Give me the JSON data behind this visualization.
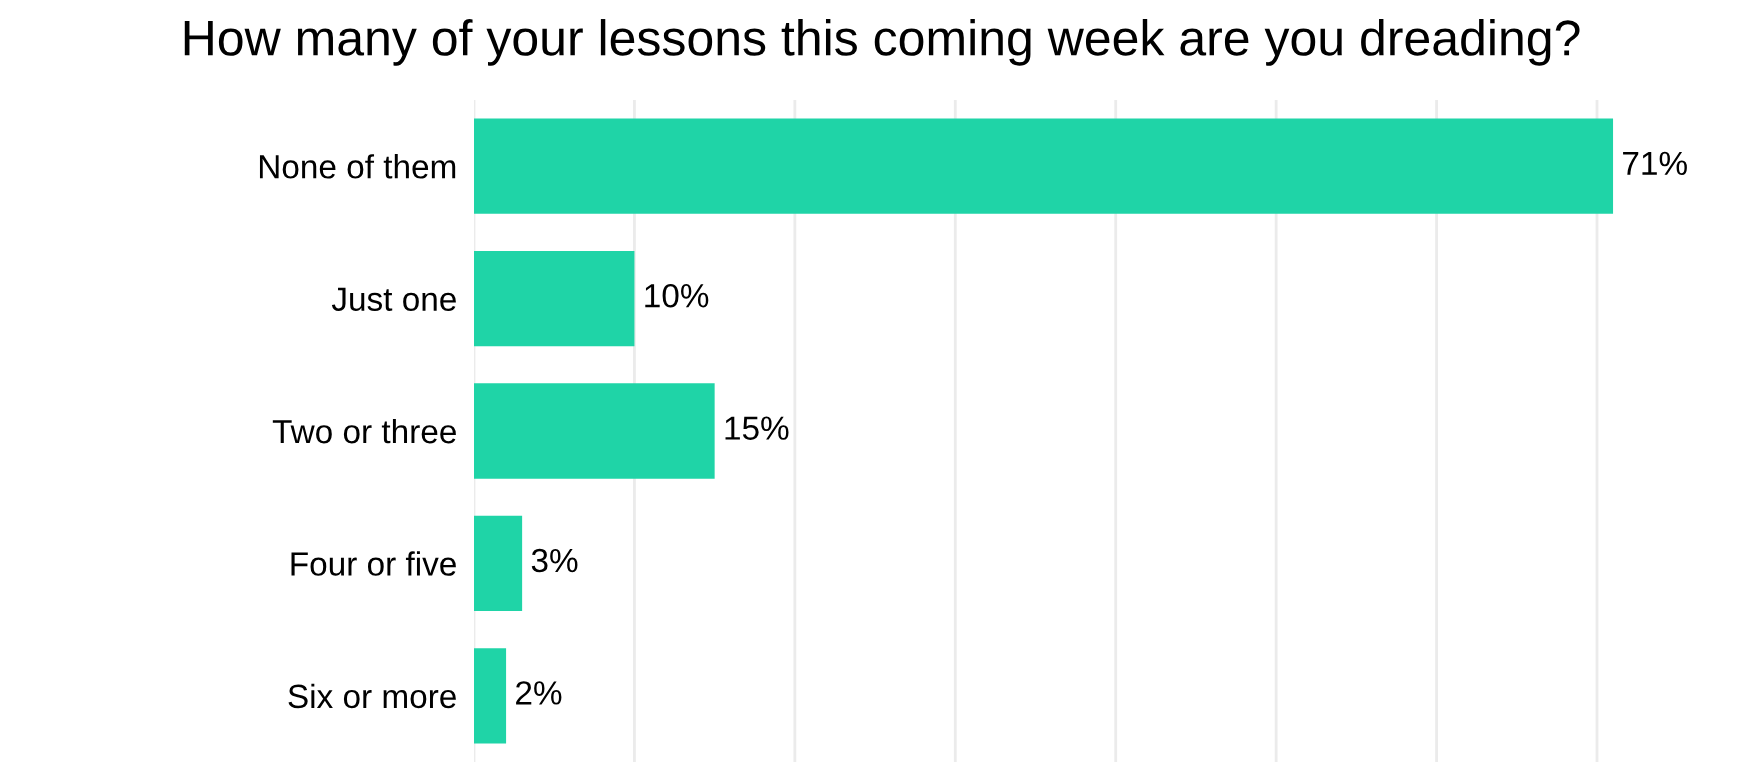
{
  "chart_data": {
    "type": "bar",
    "orientation": "horizontal",
    "title": "How many of your lessons this coming week are you dreading?",
    "categories": [
      "None of them",
      "Just one",
      "Two or three",
      "Four or five",
      "Six or more"
    ],
    "values": [
      71,
      10,
      15,
      3,
      2
    ],
    "value_labels": [
      "71%",
      "10%",
      "15%",
      "3%",
      "2%"
    ],
    "color": "#1fd4a7",
    "xticks": [
      {
        "value": 0,
        "label": null
      },
      {
        "value": 10,
        "label": null
      },
      {
        "value": 20,
        "label": null
      },
      {
        "value": 30,
        "label": null
      },
      {
        "value": 40,
        "label": null
      },
      {
        "value": 50,
        "label": null
      },
      {
        "value": 60,
        "label": null
      },
      {
        "value": 70,
        "label": null
      }
    ],
    "grid": "x"
  }
}
